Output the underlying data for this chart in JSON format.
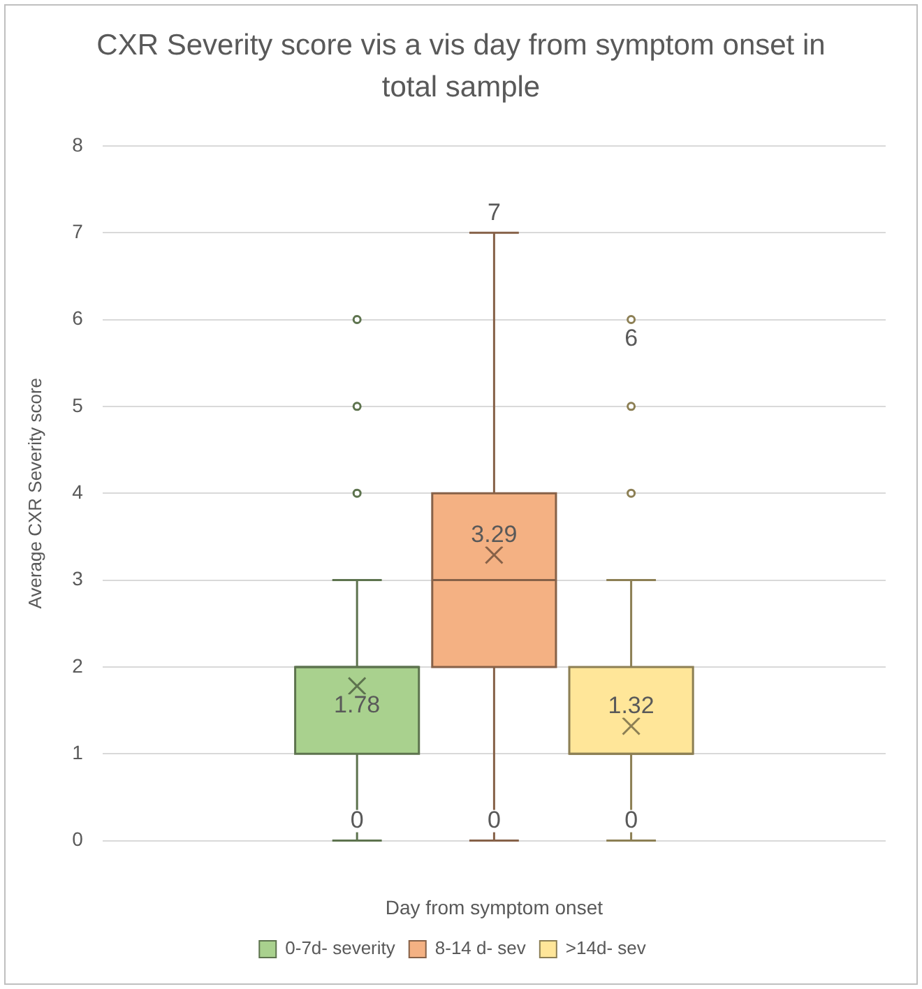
{
  "chart_data": {
    "type": "box",
    "title": "CXR Severity score vis a vis day from symptom onset in total sample",
    "xlabel": "Day from symptom onset",
    "ylabel": "Average CXR Severity score",
    "categories": [
      null
    ],
    "ylim": [
      0,
      8
    ],
    "yticks": [
      0,
      1,
      2,
      3,
      4,
      5,
      6,
      7,
      8
    ],
    "grid": "y",
    "legend": "bottom",
    "marker": "cross",
    "series": [
      {
        "name": "0-7d- severity",
        "color": "#a9d18e",
        "boxes": [
          {
            "low": 0,
            "q1": 1,
            "median": 2,
            "q3": 2,
            "high": 3,
            "mean": 1.78,
            "outliers": [
              4,
              5,
              6
            ]
          }
        ]
      },
      {
        "name": "8-14 d- sev",
        "color": "#f4b183",
        "boxes": [
          {
            "low": 0,
            "q1": 2,
            "median": 3,
            "q3": 4,
            "high": 7,
            "mean": 3.29
          }
        ]
      },
      {
        "name": ">14d- sev",
        "color": "#ffe699",
        "boxes": [
          {
            "low": 0,
            "q1": 1,
            "median": 1,
            "q3": 2,
            "high": 3,
            "mean": 1.32,
            "outliers": [
              4,
              5,
              6
            ]
          }
        ]
      }
    ],
    "annotations": [
      {
        "text": "0",
        "y": 0
      },
      "1.78",
      {
        "text": "0",
        "y": 0
      },
      "3.29",
      {
        "text": "7",
        "y": 7
      },
      {
        "text": "0",
        "y": 0
      },
      "1.32",
      "6"
    ]
  }
}
